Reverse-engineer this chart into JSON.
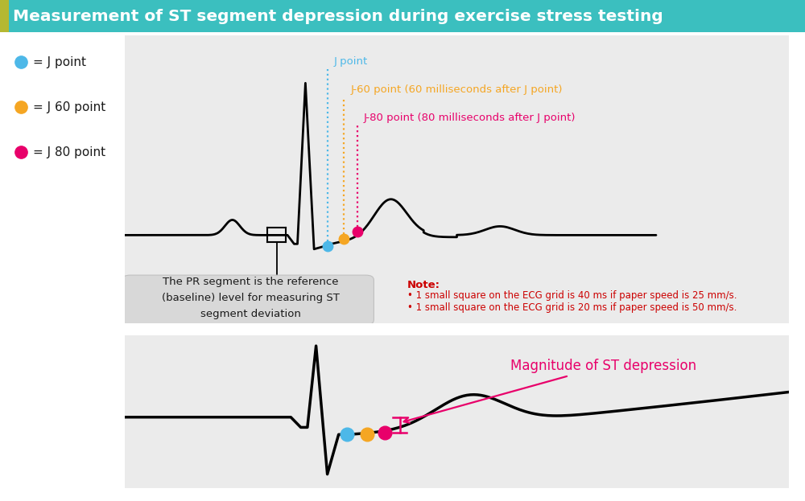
{
  "title": "Measurement of ST segment depression during exercise stress testing",
  "title_bg": "#3bbfbf",
  "title_left_bar": "#b5b832",
  "title_color": "#ffffff",
  "bg_color": "#ffffff",
  "panel_bg": "#ebebeb",
  "legend_items": [
    {
      "label": "= J point",
      "color": "#4db8e8"
    },
    {
      "label": "= J 60 point",
      "color": "#f5a623"
    },
    {
      "label": "= J 80 point",
      "color": "#e8006a"
    }
  ],
  "j_point_color": "#4db8e8",
  "j60_color": "#f5a623",
  "j80_color": "#e8006a",
  "note_color": "#cc0000",
  "pr_box_text": "The PR segment is the reference\n(baseline) level for measuring ST\nsegment deviation",
  "note_title": "Note:",
  "note_line1": "• 1 small square on the ECG grid is 40 ms if paper speed is 25 mm/s.",
  "note_line2": "• 1 small square on the ECG grid is 20 ms if paper speed is 50 mm/s.",
  "label_jpoint": "J point",
  "label_j60": "J-60 point (60 milliseconds after J point)",
  "label_j80": "J-80 point (80 milliseconds after J point)",
  "label_magnitude": "Magnitude of ST depression"
}
